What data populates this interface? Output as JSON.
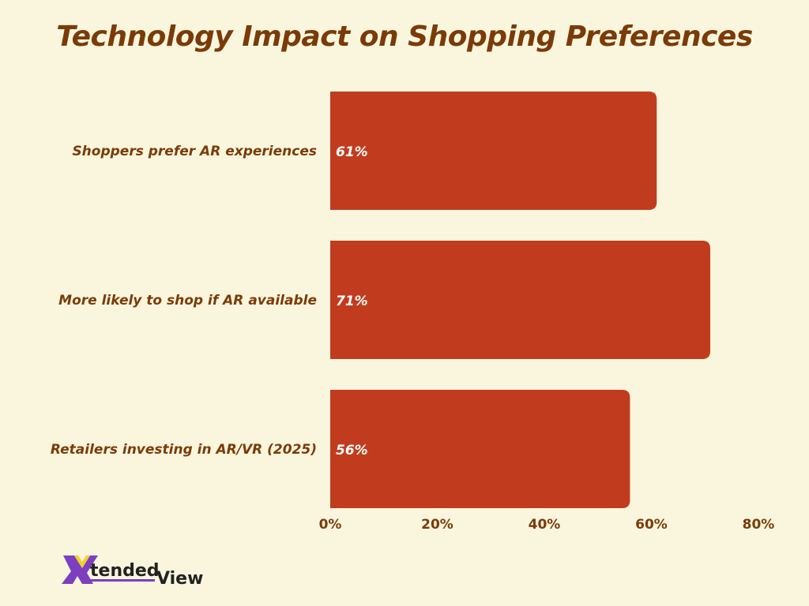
{
  "chart_data": {
    "type": "bar",
    "orientation": "horizontal",
    "title": "Technology Impact on Shopping Preferences",
    "categories": [
      "Shoppers prefer AR experiences",
      "More likely to shop if AR available",
      "Retailers investing in AR/VR (2025)"
    ],
    "values": [
      61,
      71,
      56
    ],
    "data_labels": [
      "61%",
      "71%",
      "56%"
    ],
    "xlim": [
      0,
      80
    ],
    "x_ticks": [
      "0%",
      "20%",
      "40%",
      "60%",
      "80%"
    ],
    "grid": false,
    "bar_color": "#c13c1e"
  },
  "logo": {
    "text_1": "tended",
    "text_2": "View"
  }
}
